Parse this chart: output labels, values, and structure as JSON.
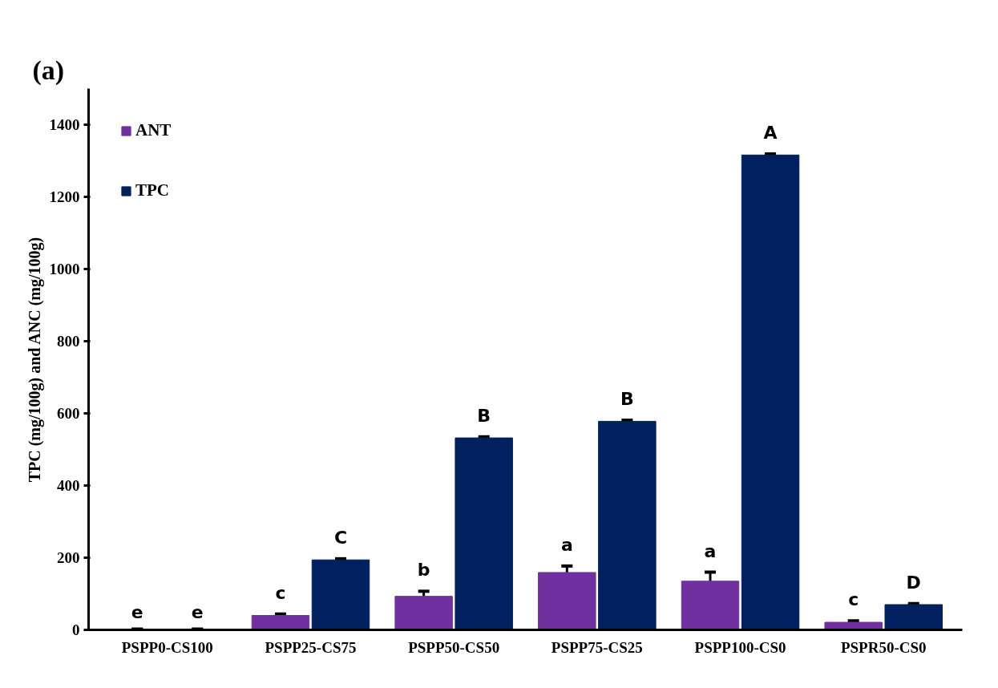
{
  "chart_data": {
    "type": "bar",
    "title": "(a)",
    "ylabel": "TPC (mg/100g) and ANC (mg/100g)",
    "categories": [
      "PSPP0-CS100",
      "PSPP25-CS75",
      "PSPP50-CS50",
      "PSPP75-CS25",
      "PSPP100-CS0",
      "PSPR50-CS0"
    ],
    "series": [
      {
        "name": "ANT",
        "color": "#7030a0",
        "values": [
          1,
          40,
          93,
          159,
          135,
          21
        ],
        "errors": [
          1,
          4,
          14,
          18,
          25,
          4
        ]
      },
      {
        "name": "TPC",
        "color": "#002060",
        "values": [
          1,
          194,
          532,
          578,
          1316,
          70
        ],
        "errors": [
          1,
          3,
          3,
          3,
          3,
          3
        ]
      }
    ],
    "annotations": [
      {
        "text": "e",
        "x": "PSPP0-CS100",
        "y": 2
      },
      {
        "text": "c",
        "x": "PSPP25-CS75",
        "y": 44
      },
      {
        "text": "b",
        "x": "PSPP50-CS50",
        "y": 107
      },
      {
        "text": "a",
        "x": "PSPP75-CS25",
        "y": 177
      },
      {
        "text": "a",
        "x": "PSPP100-CS0",
        "y": 160
      },
      {
        "text": "c",
        "x": "PSPR50-CS0",
        "y": 25
      },
      {
        "text": "e",
        "x": "PSPP0-CS100",
        "y": 2
      },
      {
        "text": "C",
        "x": "PSPP25-CS75",
        "y": 197
      },
      {
        "text": "B",
        "x": "PSPP50-CS50",
        "y": 535
      },
      {
        "text": "B",
        "x": "PSPP75-CS25",
        "y": 581
      },
      {
        "text": "A",
        "x": "PSPP100-CS0",
        "y": 1319
      },
      {
        "text": "D",
        "x": "PSPR50-CS0",
        "y": 73
      }
    ],
    "ylim": [
      0,
      1500
    ],
    "yticks": [
      0,
      200,
      400,
      600,
      800,
      1000,
      1200,
      1400
    ],
    "grid": false,
    "legend": "top left"
  }
}
